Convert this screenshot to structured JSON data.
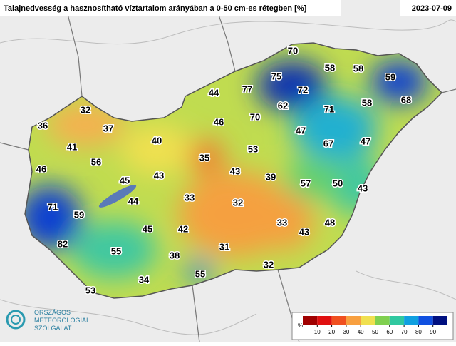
{
  "header": {
    "title": "Talajnedvesség a hasznosítható víztartalom arányában a 0-50 cm-es rétegben [%]",
    "date": "2023-07-09"
  },
  "stations": [
    70,
    58,
    58,
    59,
    75,
    72,
    77,
    44,
    68,
    62,
    71,
    58,
    32,
    70,
    46,
    36,
    37,
    47,
    40,
    67,
    47,
    41,
    53,
    35,
    56,
    46,
    43,
    45,
    43,
    39,
    57,
    50,
    43,
    33,
    44,
    32,
    71,
    59,
    33,
    48,
    45,
    42,
    43,
    82,
    31,
    55,
    38,
    32,
    55,
    34,
    53
  ],
  "legend": {
    "unit": "%",
    "ticks": [
      10,
      20,
      30,
      40,
      50,
      60,
      70,
      80,
      90
    ],
    "colors": [
      "#a00000",
      "#e01010",
      "#f05020",
      "#f8a040",
      "#f0e050",
      "#80d050",
      "#30c8a0",
      "#10a0e0",
      "#1050e0",
      "#001080"
    ]
  },
  "logo": {
    "lines": [
      "ORSZÁGOS",
      "METEOROLÓGIAI",
      "SZOLGÁLAT"
    ]
  }
}
